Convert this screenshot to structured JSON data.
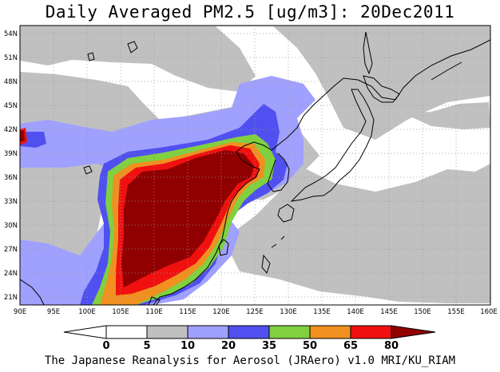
{
  "title": "Daily Averaged PM2.5 [ug/m3]: 20Dec2011",
  "footer": "The Japanese Reanalysis for Aerosol (JRAero) v1.0 MRI/KU_RIAM",
  "map": {
    "lon_range": [
      90,
      160
    ],
    "lat_range": [
      20,
      55
    ],
    "lon_ticks": [
      "90E",
      "95E",
      "100E",
      "105E",
      "110E",
      "115E",
      "120E",
      "125E",
      "130E",
      "135E",
      "140E",
      "145E",
      "150E",
      "155E",
      "160E"
    ],
    "lat_ticks": [
      "54N",
      "51N",
      "48N",
      "45N",
      "42N",
      "39N",
      "36N",
      "33N",
      "30N",
      "27N",
      "24N",
      "21N"
    ],
    "gridlines": "dotted"
  },
  "colorbar": {
    "levels": [
      "0",
      "5",
      "10",
      "20",
      "35",
      "50",
      "65",
      "80"
    ],
    "colors": {
      "below_0": "#ffffff",
      "0_5": "#ffffff",
      "5_10": "#c0c0c0",
      "10_20": "#a0a0ff",
      "20_35": "#5050f0",
      "35_50": "#80d040",
      "50_65": "#f09020",
      "65_80": "#f01010",
      "above_80": "#900000"
    }
  }
}
